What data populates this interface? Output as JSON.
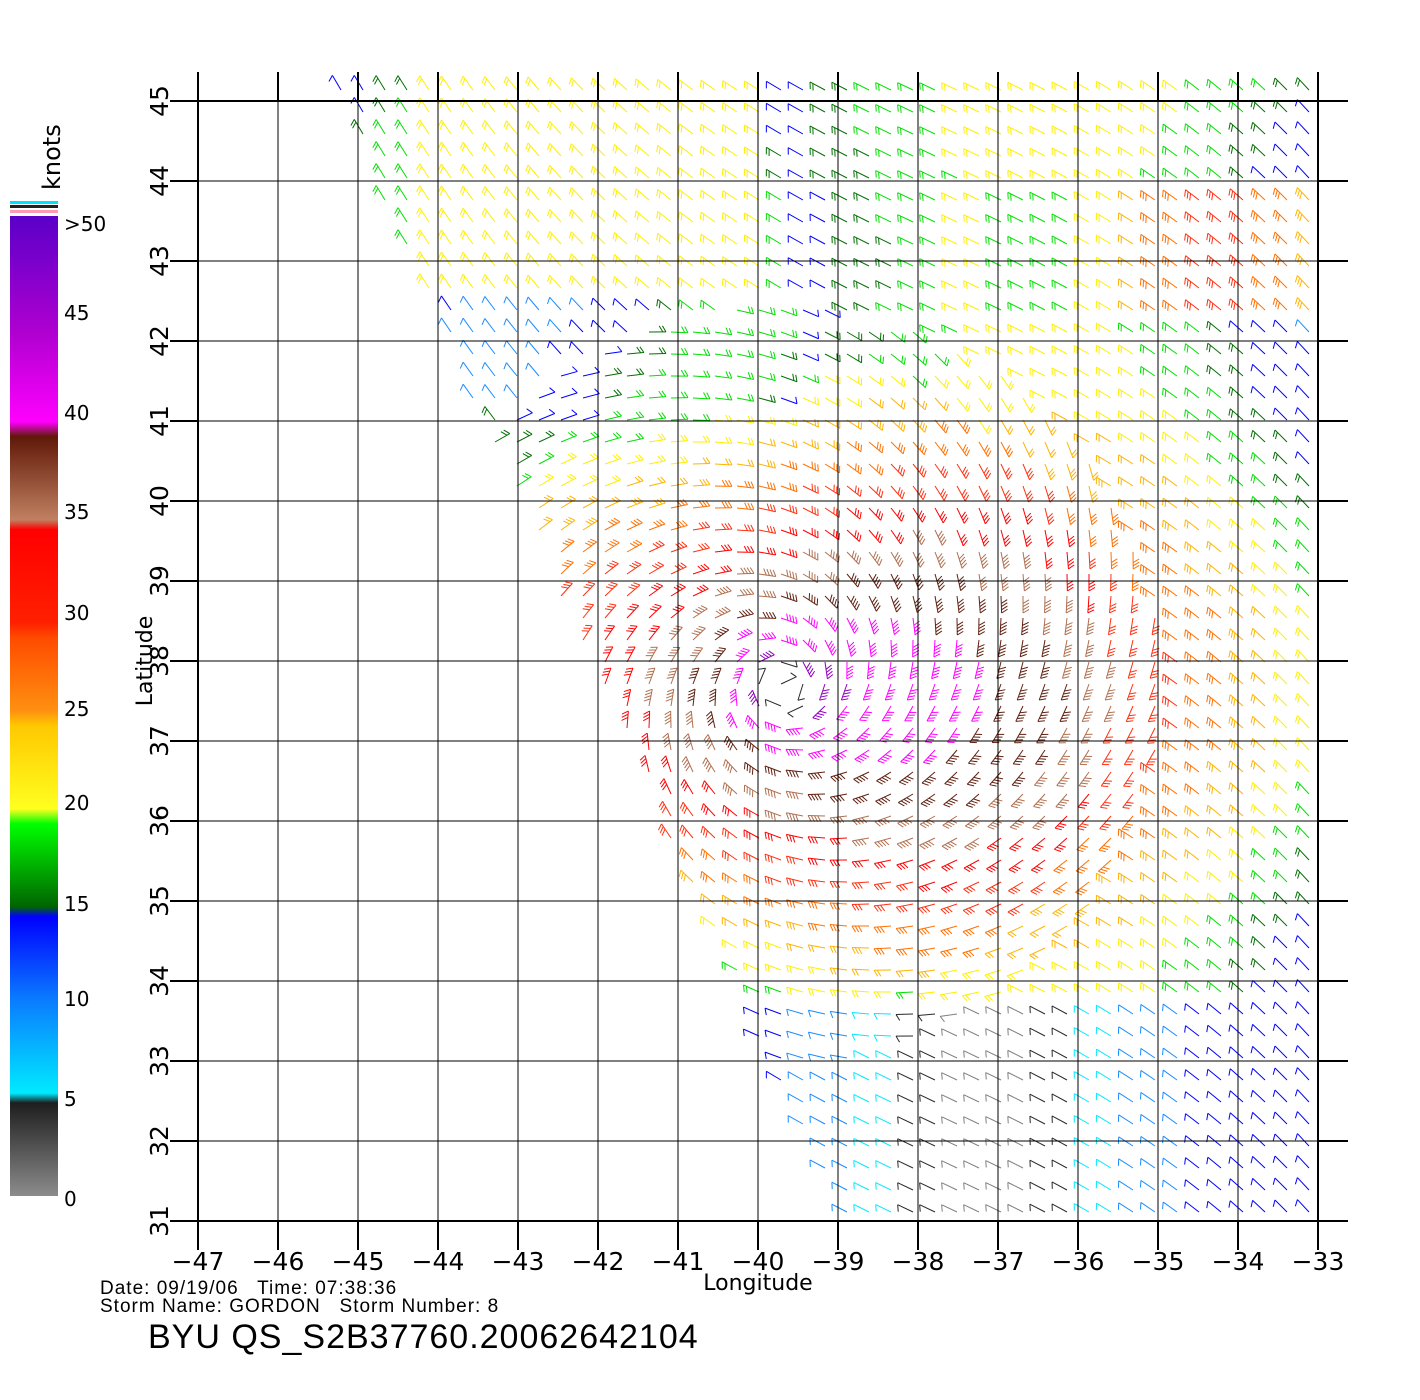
{
  "colorbar": {
    "unit": "knots",
    "labels": [
      ">50",
      "45",
      "40",
      "35",
      "30",
      "25",
      "20",
      "15",
      "10",
      "5",
      "0"
    ]
  },
  "axes": {
    "xlabel": "Longitude",
    "ylabel": "Latitude",
    "lon_ticks": [
      "-47",
      "-46",
      "-45",
      "-44",
      "-43",
      "-42",
      "-41",
      "-40",
      "-39",
      "-38",
      "-37",
      "-36",
      "-35",
      "-34",
      "-33"
    ],
    "lat_ticks": [
      "31",
      "32",
      "33",
      "34",
      "35",
      "36",
      "37",
      "38",
      "39",
      "40",
      "41",
      "42",
      "43",
      "44",
      "45"
    ],
    "lon_range": [
      -47,
      -33
    ],
    "lat_range": [
      31,
      45
    ]
  },
  "footer": {
    "line1": "Date: 09/19/06   Time: 07:38:36",
    "line2": "Storm Name: GORDON   Storm Number: 8",
    "title": "BYU QS_S2B37760.20062642104"
  },
  "wind_field": {
    "storm_center": {
      "lon": -39.7,
      "lat": 37.7
    },
    "speed_colors": [
      "#808080",
      "#2a2a2a",
      "#00e8ff",
      "#1a8cff",
      "#0000ff",
      "#007000",
      "#00e000",
      "#ffef00",
      "#ffb300",
      "#ff7000",
      "#ff3010",
      "#ff0000",
      "#b07050",
      "#602010",
      "#ff00ff",
      "#9000c0",
      "#6000c0"
    ]
  }
}
